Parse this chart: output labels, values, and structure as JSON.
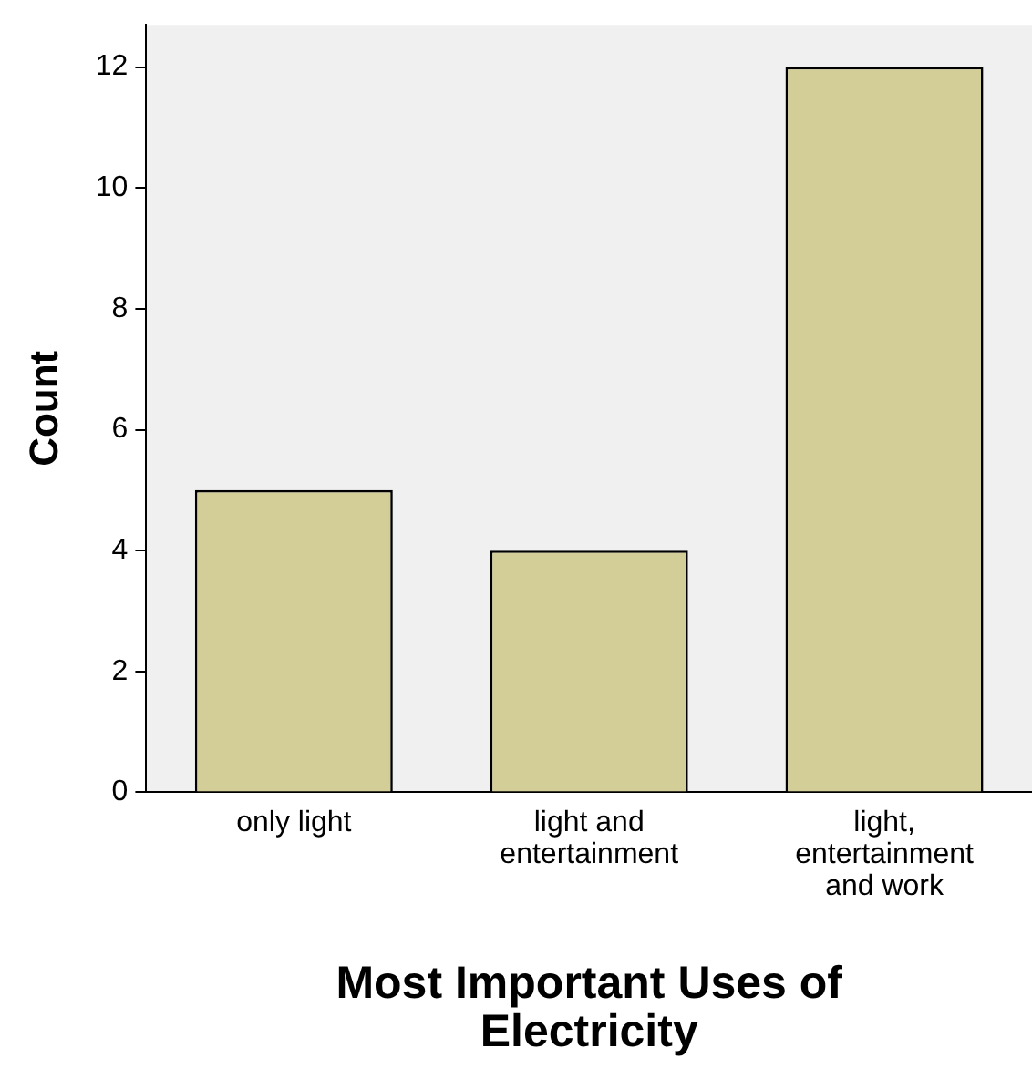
{
  "chart_data": {
    "type": "bar",
    "xlabel": "Most Important Uses of Electricity",
    "ylabel": "Count",
    "categories": [
      "only light",
      "light and entertainment",
      "light, entertainment and work"
    ],
    "values": [
      5,
      4,
      12
    ],
    "color": "#d3ce97",
    "ylim": [
      0,
      12.7
    ],
    "yticks": [
      0,
      2,
      4,
      6,
      8,
      10,
      12
    ],
    "grid": false,
    "legend": false
  }
}
